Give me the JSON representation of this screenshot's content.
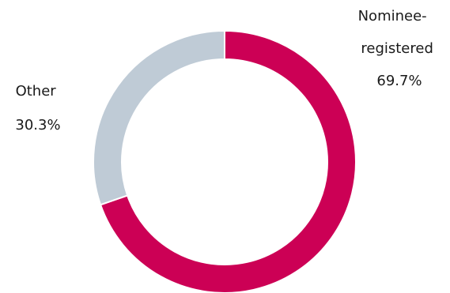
{
  "chart_data": {
    "type": "pie",
    "variant": "donut",
    "title": "",
    "slices": [
      {
        "label_lines": [
          "Nominee-",
          "registered"
        ],
        "value": 69.7,
        "value_label": "69.7%",
        "color": "#cc0055"
      },
      {
        "label_lines": [
          "Other"
        ],
        "value": 30.3,
        "value_label": "30.3%",
        "color": "#bfcbd6"
      }
    ],
    "start_angle": "12 o'clock",
    "direction": "clockwise",
    "legend": "none",
    "labels_placement": "outside"
  }
}
